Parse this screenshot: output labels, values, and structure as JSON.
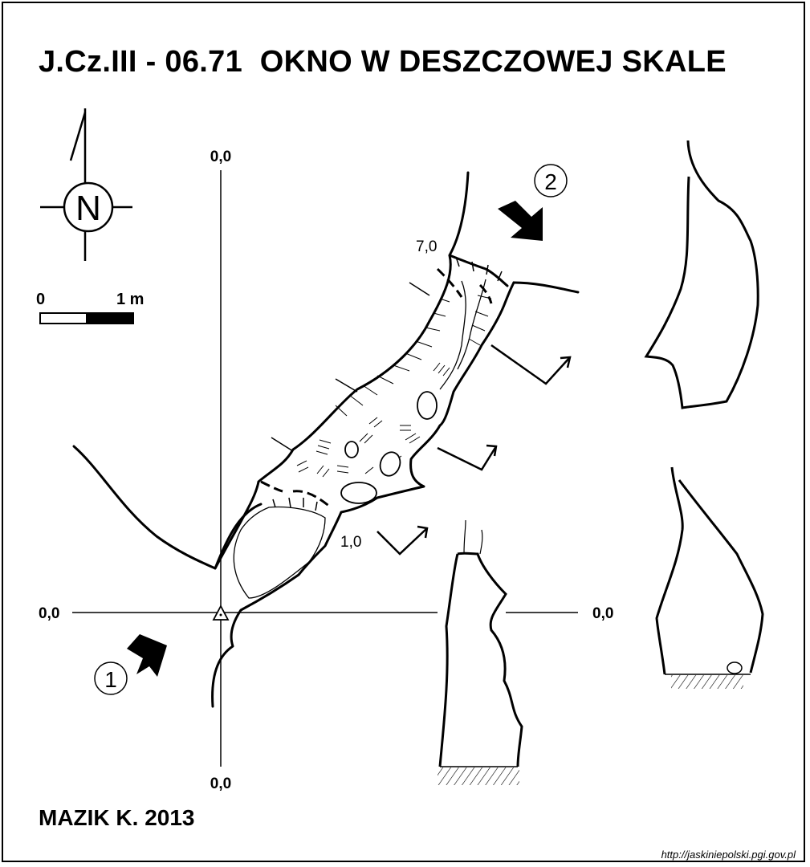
{
  "title": "J.Cz.III - 06.71  OKNO W DESZCZOWEJ SKALE",
  "author": "MAZIK K. 2013",
  "source_url": "http://jaskiniepolski.pgi.gov.pl",
  "north_label": "N",
  "scale": {
    "start_label": "0",
    "end_label": "1 m"
  },
  "axis_labels": {
    "top": "0,0",
    "bottom": "0,0",
    "left": "0,0",
    "right": "0,0"
  },
  "depths": {
    "entrance": "7,0",
    "inner": "1,0"
  },
  "views": {
    "view1": "1",
    "view2": "2"
  }
}
